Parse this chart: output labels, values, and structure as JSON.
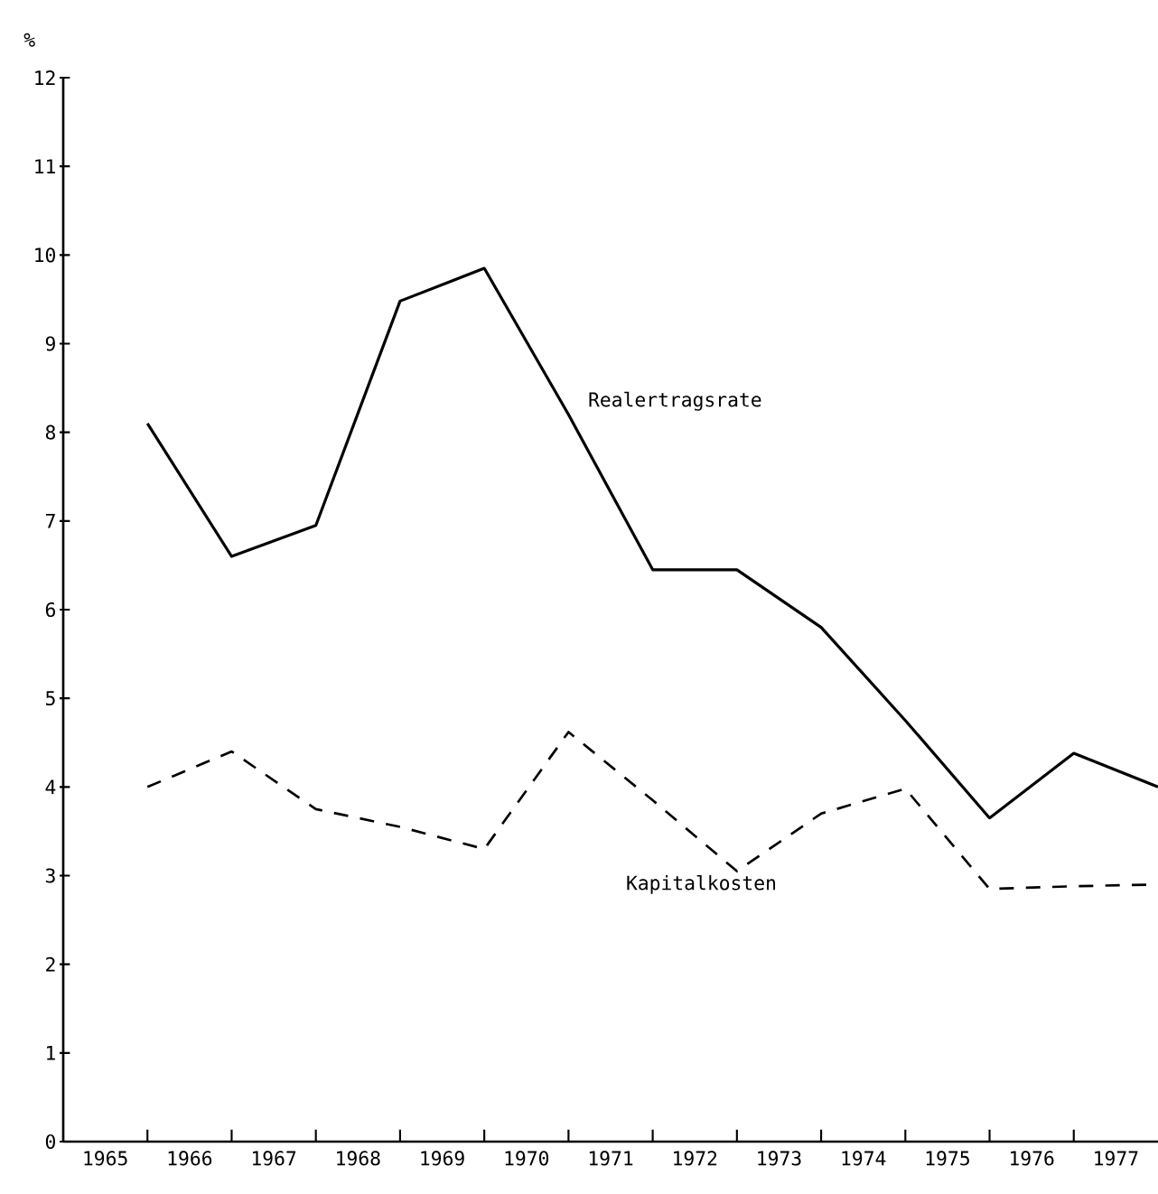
{
  "chart_data": {
    "type": "line",
    "ylabel": "%",
    "x": [
      1966,
      1967,
      1968,
      1969,
      1970,
      1971,
      1972,
      1973,
      1974,
      1975,
      1976,
      1977,
      1978
    ],
    "series": [
      {
        "name": "Realertragsrate",
        "color": "#000000",
        "line_style": "solid",
        "values": [
          8.1,
          6.6,
          6.95,
          9.48,
          9.85,
          8.2,
          6.45,
          6.45,
          5.8,
          4.75,
          3.65,
          4.38,
          4.0
        ]
      },
      {
        "name": "Kapitalkosten",
        "color": "#000000",
        "line_style": "dashed",
        "values": [
          4.0,
          4.4,
          3.75,
          3.55,
          3.3,
          4.62,
          3.85,
          3.05,
          3.7,
          3.98,
          2.85,
          2.88,
          2.9
        ]
      }
    ],
    "xlim": [
      1965,
      1978
    ],
    "ylim": [
      0,
      12
    ],
    "yticks": [
      0,
      1,
      2,
      3,
      4,
      5,
      6,
      7,
      8,
      9,
      10,
      11,
      12
    ],
    "xticks": [
      {
        "value": 1965.5,
        "label": "1965"
      },
      {
        "value": 1966,
        "label": null
      },
      {
        "value": 1966.5,
        "label": "1966"
      },
      {
        "value": 1967,
        "label": null
      },
      {
        "value": 1967.5,
        "label": "1967"
      },
      {
        "value": 1968,
        "label": null
      },
      {
        "value": 1968.5,
        "label": "1968"
      },
      {
        "value": 1969,
        "label": null
      },
      {
        "value": 1969.5,
        "label": "1969"
      },
      {
        "value": 1970,
        "label": null
      },
      {
        "value": 1970.5,
        "label": "1970"
      },
      {
        "value": 1971,
        "label": null
      },
      {
        "value": 1971.5,
        "label": "1971"
      },
      {
        "value": 1972,
        "label": null
      },
      {
        "value": 1972.5,
        "label": "1972"
      },
      {
        "value": 1973,
        "label": null
      },
      {
        "value": 1973.5,
        "label": "1973"
      },
      {
        "value": 1974,
        "label": null
      },
      {
        "value": 1974.5,
        "label": "1974"
      },
      {
        "value": 1975,
        "label": null
      },
      {
        "value": 1975.5,
        "label": "1975"
      },
      {
        "value": 1976,
        "label": null
      },
      {
        "value": 1976.5,
        "label": "1976"
      },
      {
        "value": 1977,
        "label": null
      },
      {
        "value": 1977.5,
        "label": "1977"
      }
    ],
    "grid": false,
    "legend": false,
    "marker": "none"
  }
}
